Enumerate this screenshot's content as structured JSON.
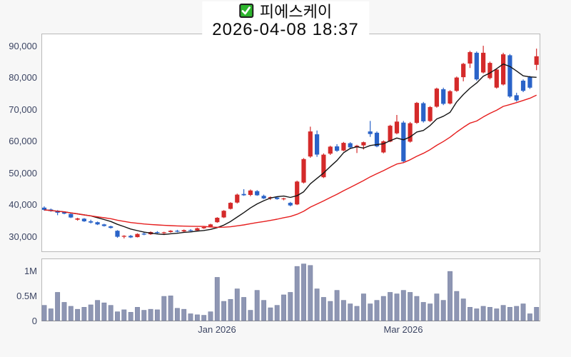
{
  "header": {
    "checkbox_checked": true,
    "title": "피에스케이",
    "datetime": "2026-04-08 18:37"
  },
  "colors": {
    "up_candle": "#d42a2a",
    "down_candle": "#2a63c8",
    "short_ma": "#141414",
    "long_ma": "#e61e1e",
    "volume_bar": "#8e96b3",
    "volume_bar_edge": "#7d86a6",
    "axis_text": "#3c4563",
    "checkbox_green": "#2db52d"
  },
  "chart_data": {
    "type": "candlestick+volume",
    "title": "피에스케이",
    "subtitle": "2026-04-08 18:37",
    "columns": [
      "open",
      "high",
      "low",
      "close",
      "volume_millions"
    ],
    "price_ylim": [
      25200,
      94050
    ],
    "volume_ylim": [
      0,
      1.26
    ],
    "volume_unit": "M",
    "grid": false,
    "price_ticks": [
      {
        "label": "90,000",
        "value": 90000
      },
      {
        "label": "80,000",
        "value": 80000
      },
      {
        "label": "70,000",
        "value": 70000
      },
      {
        "label": "60,000",
        "value": 60000
      },
      {
        "label": "50,000",
        "value": 50000
      },
      {
        "label": "40,000",
        "value": 40000
      },
      {
        "label": "30,000",
        "value": 30000
      }
    ],
    "volume_ticks": [
      {
        "label": "1M",
        "value": 1
      },
      {
        "label": "0.5M",
        "value": 0.5
      },
      {
        "label": "0",
        "value": 0
      }
    ],
    "x_ticks": [
      {
        "label": "Jan 2026",
        "index": 26
      },
      {
        "label": "Mar 2026",
        "index": 54
      }
    ],
    "ma_overlays": [
      {
        "name": "short-ma",
        "window": 8,
        "color": "#141414"
      },
      {
        "name": "long-ma",
        "window": 25,
        "color": "#e61e1e"
      }
    ],
    "candles": [
      [
        39200,
        39600,
        38200,
        38500,
        0.32
      ],
      [
        38600,
        38900,
        37900,
        38100,
        0.25
      ],
      [
        38200,
        38400,
        36800,
        37600,
        0.58
      ],
      [
        37700,
        38000,
        37100,
        37300,
        0.38
      ],
      [
        37200,
        37400,
        35900,
        36100,
        0.3
      ],
      [
        35400,
        36000,
        35100,
        35800,
        0.24
      ],
      [
        35700,
        35900,
        34700,
        34900,
        0.28
      ],
      [
        34900,
        35400,
        34200,
        34500,
        0.33
      ],
      [
        34600,
        34800,
        33700,
        33900,
        0.42
      ],
      [
        33900,
        34100,
        33200,
        33400,
        0.37
      ],
      [
        33300,
        33500,
        32600,
        32800,
        0.32
      ],
      [
        31900,
        32100,
        29700,
        30000,
        0.19
      ],
      [
        30000,
        30500,
        29500,
        30300,
        0.23
      ],
      [
        30300,
        30600,
        29600,
        29800,
        0.18
      ],
      [
        29900,
        31100,
        29800,
        30900,
        0.28
      ],
      [
        31000,
        31400,
        30500,
        30700,
        0.22
      ],
      [
        30800,
        31700,
        30600,
        31500,
        0.24
      ],
      [
        31500,
        31800,
        31000,
        31200,
        0.23
      ],
      [
        31200,
        31600,
        30800,
        31400,
        0.5
      ],
      [
        31500,
        32100,
        31300,
        31900,
        0.51
      ],
      [
        31900,
        32200,
        31400,
        31600,
        0.26
      ],
      [
        31700,
        32300,
        31500,
        32100,
        0.24
      ],
      [
        32100,
        32400,
        31700,
        31900,
        0.15
      ],
      [
        32000,
        32900,
        31800,
        32700,
        0.13
      ],
      [
        32700,
        33300,
        32500,
        33100,
        0.12
      ],
      [
        33200,
        34100,
        33000,
        33900,
        0.19
      ],
      [
        34600,
        36200,
        34400,
        36000,
        0.88
      ],
      [
        36100,
        38400,
        35900,
        38200,
        0.4
      ],
      [
        38800,
        40900,
        38600,
        40700,
        0.44
      ],
      [
        40800,
        43600,
        40500,
        43300,
        0.65
      ],
      [
        43500,
        45000,
        42900,
        43100,
        0.48
      ],
      [
        43200,
        44900,
        42800,
        44600,
        0.22
      ],
      [
        44400,
        44700,
        42900,
        43100,
        0.62
      ],
      [
        42900,
        43300,
        41900,
        42100,
        0.42
      ],
      [
        42200,
        42700,
        41600,
        42500,
        0.27
      ],
      [
        42400,
        42600,
        41700,
        41900,
        0.32
      ],
      [
        41900,
        42300,
        41500,
        42100,
        0.53
      ],
      [
        40700,
        41000,
        39600,
        39900,
        0.58
      ],
      [
        40200,
        47700,
        40000,
        47400,
        1.1
      ],
      [
        47100,
        54800,
        46800,
        54500,
        1.15
      ],
      [
        55300,
        64700,
        54900,
        63200,
        1.12
      ],
      [
        62300,
        63500,
        55200,
        55900,
        0.65
      ],
      [
        48800,
        56300,
        48500,
        55900,
        0.48
      ],
      [
        56200,
        58700,
        55800,
        58400,
        0.4
      ],
      [
        58500,
        59200,
        56800,
        57100,
        0.62
      ],
      [
        57200,
        59900,
        57000,
        59600,
        0.42
      ],
      [
        59500,
        59800,
        57900,
        58200,
        0.35
      ],
      [
        58300,
        59000,
        56400,
        58700,
        0.3
      ],
      [
        58800,
        60000,
        57500,
        59800,
        0.55
      ],
      [
        63200,
        66500,
        61500,
        62400,
        0.35
      ],
      [
        62800,
        63200,
        58200,
        58500,
        0.42
      ],
      [
        56600,
        60400,
        56300,
        60100,
        0.5
      ],
      [
        60000,
        65300,
        59800,
        65000,
        0.58
      ],
      [
        62600,
        68400,
        62300,
        66300,
        0.55
      ],
      [
        66000,
        66500,
        53400,
        53800,
        0.62
      ],
      [
        60000,
        66200,
        59700,
        65800,
        0.58
      ],
      [
        65900,
        72500,
        65600,
        72200,
        0.5
      ],
      [
        72100,
        72500,
        66000,
        66400,
        0.38
      ],
      [
        66500,
        71200,
        66200,
        70900,
        0.35
      ],
      [
        71000,
        77000,
        70700,
        76700,
        0.55
      ],
      [
        76500,
        77000,
        71500,
        71900,
        0.42
      ],
      [
        72000,
        76200,
        71700,
        75900,
        1.0
      ],
      [
        76000,
        80500,
        75700,
        80200,
        0.6
      ],
      [
        80300,
        84800,
        79000,
        84500,
        0.45
      ],
      [
        84600,
        88600,
        83200,
        88200,
        0.28
      ],
      [
        88000,
        88400,
        79200,
        79600,
        0.25
      ],
      [
        81800,
        90200,
        81500,
        88000,
        0.3
      ],
      [
        80000,
        85200,
        79600,
        84800,
        0.28
      ],
      [
        77000,
        83000,
        76700,
        82700,
        0.25
      ],
      [
        78000,
        88000,
        77700,
        87500,
        0.32
      ],
      [
        87200,
        87600,
        73800,
        74200,
        0.28
      ],
      [
        74600,
        75400,
        72600,
        73000,
        0.3
      ],
      [
        79200,
        79600,
        75600,
        76000,
        0.35
      ],
      [
        80300,
        80700,
        76600,
        77000,
        0.15
      ],
      [
        84200,
        89300,
        82500,
        86900,
        0.28
      ]
    ]
  }
}
